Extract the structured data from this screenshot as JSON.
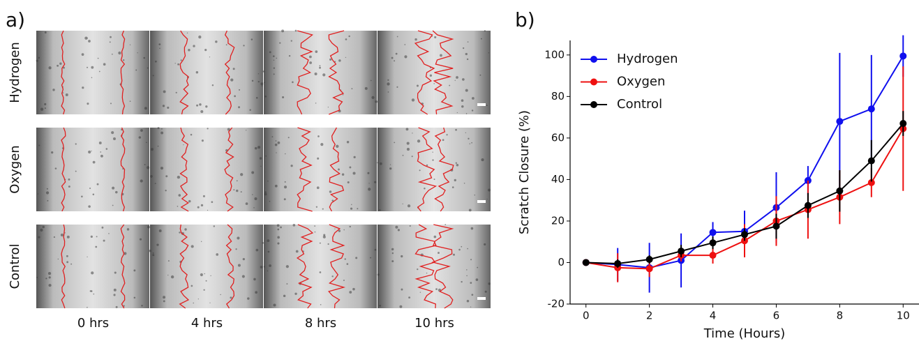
{
  "panel_a": {
    "label": "a)",
    "row_labels": [
      "Hydrogen",
      "Oxygen",
      "Control"
    ],
    "column_labels": [
      "0 hrs",
      "4 hrs",
      "8 hrs",
      "10 hrs"
    ]
  },
  "chart_data": {
    "type": "line",
    "panel_label": "b)",
    "x_label": "Time (Hours)",
    "y_label": "Scratch Closure (%)",
    "x": [
      0,
      1,
      2,
      3,
      4,
      5,
      6,
      7,
      8,
      9,
      10
    ],
    "series": [
      {
        "name": "Hydrogen",
        "color": "#1010ee",
        "values": [
          0,
          -1,
          -2.5,
          1,
          14.5,
          15,
          26.5,
          39.5,
          68,
          74,
          99.5
        ],
        "errors": [
          0,
          8,
          12,
          13,
          5,
          10,
          17,
          7,
          33,
          26,
          10
        ]
      },
      {
        "name": "Oxygen",
        "color": "#ee1010",
        "values": [
          0,
          -2.5,
          -3,
          3.5,
          3.5,
          10.5,
          20,
          25.5,
          31.5,
          38.5,
          64.5
        ],
        "errors": [
          0,
          7,
          4,
          3,
          4,
          8,
          12,
          14,
          13,
          7,
          30
        ]
      },
      {
        "name": "Control",
        "color": "#000000",
        "values": [
          0,
          -0.5,
          1.5,
          5.5,
          9.5,
          13.5,
          17.5,
          27.5,
          34.5,
          49,
          67
        ],
        "errors": [
          0,
          2,
          2,
          3,
          3,
          3,
          6,
          6,
          10,
          10,
          6
        ]
      }
    ],
    "xlim": [
      -0.5,
      10.5
    ],
    "ylim": [
      -20,
      107
    ],
    "xticks": [
      0,
      2,
      4,
      6,
      8,
      10
    ],
    "yticks": [
      -20,
      0,
      20,
      40,
      60,
      80,
      100
    ],
    "legend": "upper left",
    "grid": false
  }
}
